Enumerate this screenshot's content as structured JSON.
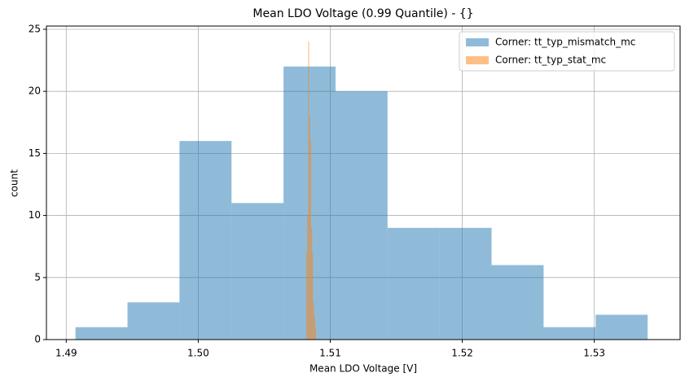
{
  "chart_data": {
    "type": "histogram",
    "title": "Mean LDO Voltage (0.99 Quantile) - {}",
    "x_label": "Mean LDO Voltage [V]",
    "y_label": "count",
    "series": [
      {
        "name": "Corner: tt_typ_mismatch_mc",
        "color": "#1f77b4",
        "bins": [
          1.4907,
          1.49464,
          1.49858,
          1.50252,
          1.50646,
          1.5104,
          1.51434,
          1.51828,
          1.52222,
          1.52616,
          1.5301,
          1.53404
        ],
        "values": [
          1,
          3,
          16,
          11,
          22,
          20,
          9,
          9,
          6,
          1,
          2
        ]
      },
      {
        "name": "Corner: tt_typ_stat_mc",
        "color": "#ff7f0e",
        "bins": [
          1.50818,
          1.508254,
          1.508328,
          1.508402,
          1.508476,
          1.50855,
          1.508624,
          1.508698,
          1.508772,
          1.508846,
          1.50892
        ],
        "values": [
          7,
          10,
          24,
          18,
          16,
          9,
          7,
          3,
          2,
          1
        ]
      }
    ],
    "xlim": [
      1.4885,
      1.5365
    ],
    "ylim": [
      0,
      25.26
    ],
    "xticks": [
      1.49,
      {
        "value": 1.5,
        "label": "1.50"
      },
      1.51,
      {
        "value": 1.52,
        "label": "1.52"
      },
      1.53
    ],
    "yticks": [
      0,
      5,
      10,
      15,
      20,
      25
    ],
    "grid": true,
    "legend": "upper right",
    "alpha": 0.5
  }
}
